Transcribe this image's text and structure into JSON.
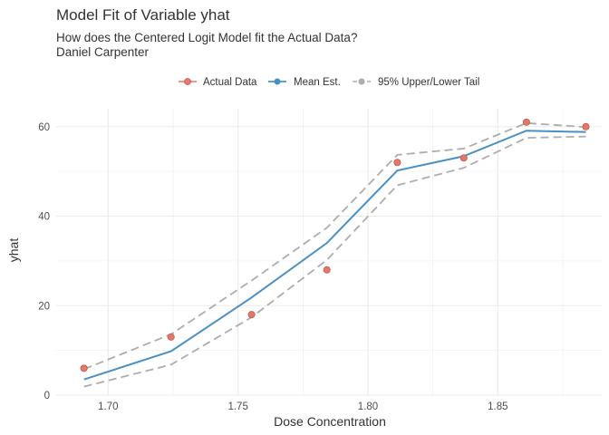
{
  "chart_data": {
    "type": "line",
    "title": "Model Fit of Variable yhat",
    "subtitle_lines": [
      "How does the Centered Logit Model fit the Actual Data?",
      "Daniel Carpenter"
    ],
    "xlabel": "Dose Concentration",
    "ylabel": "yhat",
    "xlim": [
      1.68,
      1.89
    ],
    "ylim": [
      0,
      64
    ],
    "x_ticks": [
      1.7,
      1.75,
      1.8,
      1.85
    ],
    "x_tick_labels": [
      "1.70",
      "1.75",
      "1.80",
      "1.85"
    ],
    "y_ticks": [
      0,
      20,
      40,
      60
    ],
    "y_tick_labels": [
      "0",
      "20",
      "40",
      "60"
    ],
    "grid": true,
    "legend_position": "top",
    "x": [
      1.6907,
      1.7242,
      1.7552,
      1.7842,
      1.8113,
      1.8369,
      1.861,
      1.8839
    ],
    "series": [
      {
        "name": "Actual Data",
        "kind": "points",
        "color": "#e8776b",
        "values": [
          6,
          13,
          18,
          28,
          52,
          53,
          61,
          60
        ]
      },
      {
        "name": "Mean Est.",
        "kind": "line",
        "color": "#4a90c4",
        "values": [
          3.5,
          9.8,
          21.8,
          34.0,
          50.2,
          53.4,
          59.1,
          58.8
        ]
      },
      {
        "name": "95% Upper/Lower Tail",
        "kind": "dashed-band",
        "color": "#adadad",
        "upper": [
          5.8,
          13.6,
          25.6,
          37.4,
          53.7,
          55.1,
          60.8,
          59.9
        ],
        "lower": [
          1.9,
          6.8,
          17.4,
          30.2,
          46.9,
          50.8,
          57.5,
          57.8
        ]
      }
    ]
  }
}
